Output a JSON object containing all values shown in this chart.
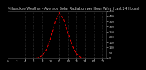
{
  "title": "Milwaukee Weather - Average Solar Radiation per Hour W/m² (Last 24 Hours)",
  "x_hours": [
    0,
    1,
    2,
    3,
    4,
    5,
    6,
    7,
    8,
    9,
    10,
    11,
    12,
    13,
    14,
    15,
    16,
    17,
    18,
    19,
    20,
    21,
    22,
    23
  ],
  "y_values": [
    0,
    0,
    0,
    0,
    0,
    0,
    0,
    2,
    20,
    80,
    190,
    340,
    430,
    370,
    240,
    120,
    40,
    5,
    0,
    0,
    0,
    0,
    0,
    0
  ],
  "line_color": "#ff0000",
  "fig_bg_color": "#000000",
  "plot_bg_color": "#000000",
  "grid_color": "#555555",
  "text_color": "#cccccc",
  "title_color": "#cccccc",
  "ylim": [
    0,
    450
  ],
  "xlim": [
    0,
    23
  ],
  "title_fontsize": 3.5,
  "tick_fontsize": 3.0,
  "yticks": [
    0,
    50,
    100,
    150,
    200,
    250,
    300,
    350,
    400,
    450
  ],
  "xtick_step": 2
}
